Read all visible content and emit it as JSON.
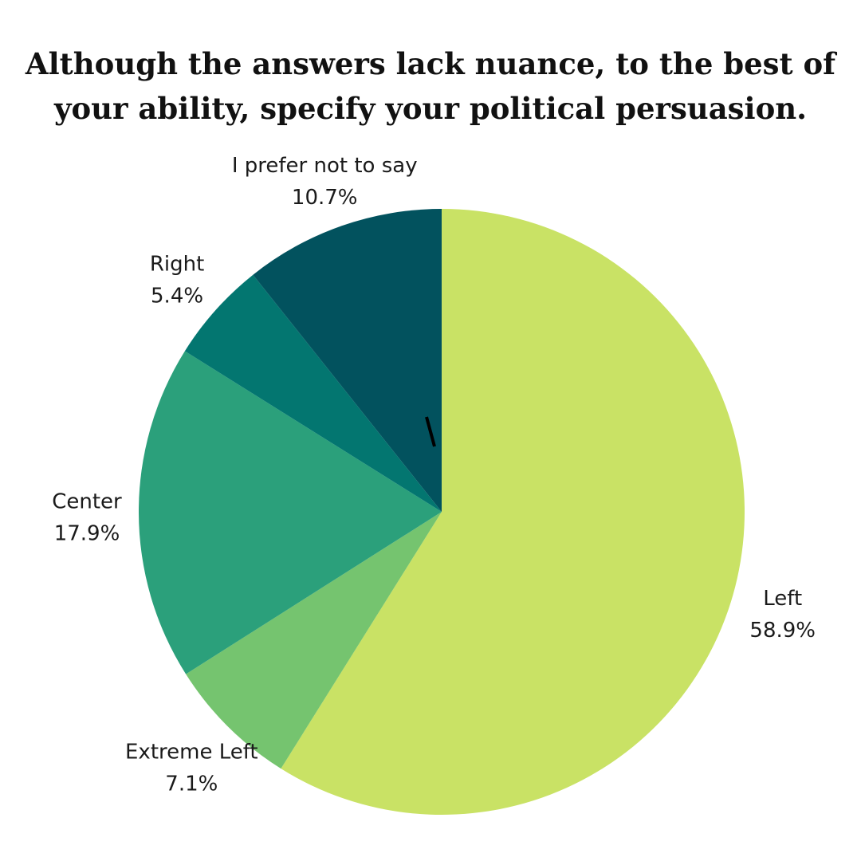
{
  "chart_data": {
    "type": "pie",
    "title": "Although the answers lack nuance, to the best of your ability, specify your political persuasion.",
    "slices": [
      {
        "label": "Left",
        "value": 58.9,
        "value_label": "58.9%",
        "color": "#c9e265"
      },
      {
        "label": "Extreme Left",
        "value": 7.1,
        "value_label": "7.1%",
        "color": "#75c46f"
      },
      {
        "label": "Center",
        "value": 17.9,
        "value_label": "17.9%",
        "color": "#2ba07b"
      },
      {
        "label": "Right",
        "value": 5.4,
        "value_label": "5.4%",
        "color": "#037670"
      },
      {
        "label": "I prefer not to say",
        "value": 10.7,
        "value_label": "10.7%",
        "color": "#02525e"
      }
    ],
    "start_angle": "12 o'clock",
    "direction": "clockwise",
    "legend": "none"
  }
}
